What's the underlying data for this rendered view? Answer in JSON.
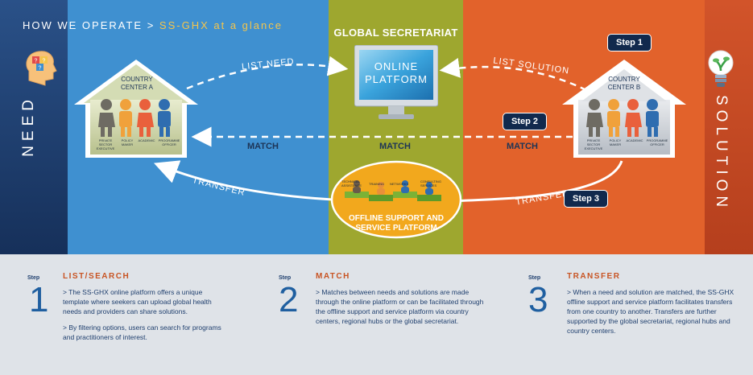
{
  "header": {
    "prefix": "HOW WE OPERATE > ",
    "highlight": "SS-GHX at a glance"
  },
  "sides": {
    "need": "NEED",
    "solution": "SOLUTION"
  },
  "center": {
    "title": "GLOBAL SECRETARIAT",
    "monitor_line1": "ONLINE",
    "monitor_line2": "PLATFORM",
    "offline_line1": "OFFLINE SUPPORT AND",
    "offline_line2": "SERVICE PLATFORM",
    "offline_roles": [
      "TECHNICAL ASSISTANCE",
      "TRAINING",
      "NETWORKS",
      "CONSULTING SERVICES"
    ]
  },
  "houses": {
    "a": {
      "line1": "COUNTRY",
      "line2": "CENTER A"
    },
    "b": {
      "line1": "COUNTRY",
      "line2": "CENTER B"
    },
    "roles": [
      "PRIVATE SECTOR EXECUTIVE",
      "POLICY MAKER",
      "ACADEMIC",
      "PROGRAMME OFFICER"
    ]
  },
  "arrows": {
    "list_need": "LIST NEED",
    "list_solution": "LIST SOLUTION",
    "match": "MATCH",
    "transfer": "TRANSFER"
  },
  "badges": {
    "step1": "Step 1",
    "step2": "Step 2",
    "step3": "Step 3"
  },
  "steps": [
    {
      "label": "Step",
      "number": "1",
      "heading": "LIST/SEARCH",
      "paragraphs": [
        "> The SS-GHX online platform offers a unique template where seekers can upload global health needs and providers can share solutions.",
        "> By filtering options, users can search for programs and practitioners of interest."
      ]
    },
    {
      "label": "Step",
      "number": "2",
      "heading": "MATCH",
      "paragraphs": [
        "> Matches between needs and solutions are made through the online platform or can be facilitated through the offline support and service platform via country centers, regional hubs or the global secretariat."
      ]
    },
    {
      "label": "Step",
      "number": "3",
      "heading": "TRANSFER",
      "paragraphs": [
        "> When a need and solution are matched, the SS-GHX offline support and service platform facilitates transfers from one country to another. Transfers are further supported by the global secretariat, regional hubs and country centers."
      ]
    }
  ],
  "colors": {
    "need_dark": "#1b3a6b",
    "blue": "#3e8fd0",
    "green": "#9ba52b",
    "orange": "#e0612a",
    "orange_dark": "#c8461f",
    "step_badge": "#11294d",
    "offline_ellipse": "#f2a81d"
  }
}
